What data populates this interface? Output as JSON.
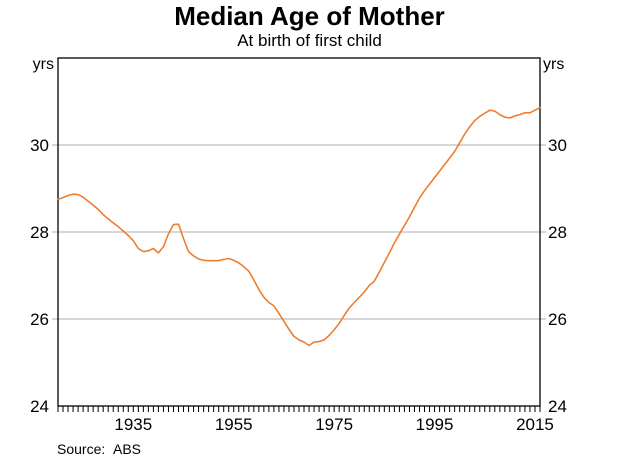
{
  "chart_data": {
    "type": "line",
    "title": "Median Age of Mother",
    "subtitle": "At birth of first child",
    "unit_label": "yrs",
    "source_label": "Source:",
    "source_value": "ABS",
    "line_color": "#EE7D30",
    "grid_color": "#ADADAD",
    "frame_color": "#000000",
    "x_range": [
      1920,
      2016
    ],
    "y_range": [
      24,
      32
    ],
    "y_tick_labels": [
      24,
      26,
      28,
      30
    ],
    "gridlines_y": [
      26,
      28,
      30
    ],
    "x_tick_labels": [
      1935,
      1955,
      1975,
      1995,
      2015
    ],
    "x_minor_tick_interval": 1,
    "legend": "none",
    "grid": "horizontal-only",
    "x": [
      1920,
      1921,
      1922,
      1923,
      1924,
      1925,
      1926,
      1927,
      1928,
      1929,
      1930,
      1931,
      1932,
      1933,
      1934,
      1935,
      1936,
      1937,
      1938,
      1939,
      1940,
      1941,
      1942,
      1943,
      1944,
      1945,
      1946,
      1947,
      1948,
      1949,
      1950,
      1951,
      1952,
      1953,
      1954,
      1955,
      1956,
      1957,
      1958,
      1959,
      1960,
      1961,
      1962,
      1963,
      1964,
      1965,
      1966,
      1967,
      1968,
      1969,
      1970,
      1971,
      1972,
      1973,
      1974,
      1975,
      1976,
      1977,
      1978,
      1979,
      1980,
      1981,
      1982,
      1983,
      1984,
      1985,
      1986,
      1987,
      1988,
      1989,
      1990,
      1991,
      1992,
      1993,
      1994,
      1995,
      1996,
      1997,
      1998,
      1999,
      2000,
      2001,
      2002,
      2003,
      2004,
      2005,
      2006,
      2007,
      2008,
      2009,
      2010,
      2011,
      2012,
      2013,
      2014,
      2015,
      2016
    ],
    "values": [
      28.75,
      28.79,
      28.84,
      28.87,
      28.86,
      28.8,
      28.71,
      28.62,
      28.52,
      28.4,
      28.3,
      28.21,
      28.12,
      28.02,
      27.92,
      27.8,
      27.62,
      27.55,
      27.57,
      27.62,
      27.52,
      27.66,
      27.96,
      28.17,
      28.18,
      27.85,
      27.55,
      27.45,
      27.38,
      27.35,
      27.34,
      27.34,
      27.34,
      27.37,
      27.39,
      27.35,
      27.29,
      27.2,
      27.1,
      26.9,
      26.68,
      26.5,
      26.38,
      26.3,
      26.13,
      25.95,
      25.76,
      25.6,
      25.52,
      25.47,
      25.39,
      25.47,
      25.48,
      25.52,
      25.62,
      25.75,
      25.9,
      26.08,
      26.25,
      26.38,
      26.5,
      26.62,
      26.77,
      26.87,
      27.08,
      27.3,
      27.52,
      27.75,
      27.95,
      28.15,
      28.35,
      28.57,
      28.78,
      28.95,
      29.1,
      29.25,
      29.4,
      29.55,
      29.7,
      29.85,
      30.05,
      30.25,
      30.42,
      30.56,
      30.66,
      30.73,
      30.8,
      30.78,
      30.7,
      30.64,
      30.62,
      30.67,
      30.7,
      30.74,
      30.74,
      30.8,
      30.86
    ]
  }
}
